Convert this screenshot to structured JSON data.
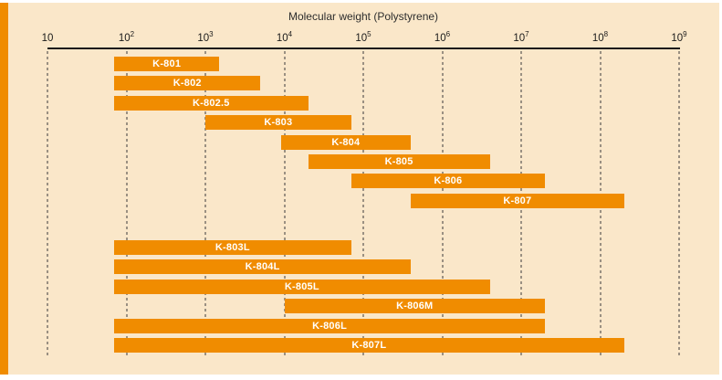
{
  "colors": {
    "bar": "#F08C00",
    "stripe": "#F08C00",
    "panel_bg": "#FAE7C9",
    "page_bg": "#FFFFFF",
    "axis": "#1A1A1A",
    "grid": "#3A3A3A",
    "bar_label": "#FFFFFF",
    "title_text": "#2E2E2E"
  },
  "chart_data": {
    "type": "bar",
    "orientation": "horizontal-range",
    "scale": "log10",
    "title": "Molecular weight (Polystyrene)",
    "x_ticks": [
      10,
      100,
      1000,
      10000,
      100000,
      1000000,
      10000000,
      100000000,
      1000000000
    ],
    "xlim": [
      10,
      1000000000
    ],
    "grid": "dashed-vertical",
    "legend": "none",
    "groups": [
      [
        {
          "label": "K-801",
          "range": [
            70,
            1500
          ]
        },
        {
          "label": "K-802",
          "range": [
            70,
            5000
          ]
        },
        {
          "label": "K-802.5",
          "range": [
            70,
            20000
          ]
        },
        {
          "label": "K-803",
          "range": [
            1000,
            70000
          ]
        },
        {
          "label": "K-804",
          "range": [
            9000,
            400000
          ]
        },
        {
          "label": "K-805",
          "range": [
            20000,
            4000000
          ]
        },
        {
          "label": "K-806",
          "range": [
            70000,
            20000000
          ]
        },
        {
          "label": "K-807",
          "range": [
            400000,
            200000000
          ]
        }
      ],
      [
        {
          "label": "K-803L",
          "range": [
            70,
            70000
          ]
        },
        {
          "label": "K-804L",
          "range": [
            70,
            400000
          ]
        },
        {
          "label": "K-805L",
          "range": [
            70,
            4000000
          ]
        },
        {
          "label": "K-806M",
          "range": [
            10000,
            20000000
          ]
        },
        {
          "label": "K-806L",
          "range": [
            70,
            20000000
          ]
        },
        {
          "label": "K-807L",
          "range": [
            70,
            200000000
          ]
        }
      ]
    ]
  }
}
